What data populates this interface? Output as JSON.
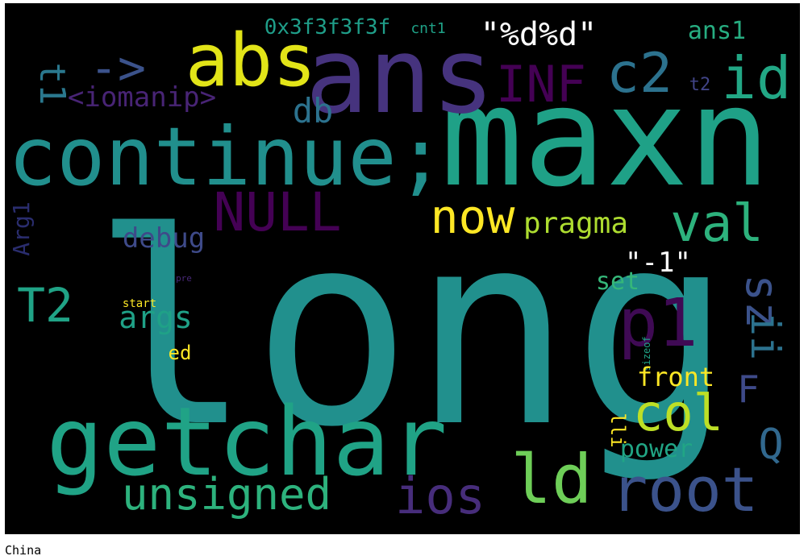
{
  "caption": "China",
  "words": [
    {
      "text": "long",
      "color": "#21908d"
    },
    {
      "text": "maxn",
      "color": "#1fa187"
    },
    {
      "text": "continue;",
      "color": "#218f8d"
    },
    {
      "text": "getchar",
      "color": "#20a386"
    },
    {
      "text": "abs",
      "color": "#e2e418"
    },
    {
      "text": "ans",
      "color": "#46337e"
    },
    {
      "text": "->",
      "color": "#3b528b"
    },
    {
      "text": "INF",
      "color": "#440154"
    },
    {
      "text": "c2",
      "color": "#2c728e"
    },
    {
      "text": "id",
      "color": "#22a785"
    },
    {
      "text": "\"%d%d\"",
      "color": "#ffffff"
    },
    {
      "text": "0x3f3f3f3f",
      "color": "#1f9e89"
    },
    {
      "text": "cnt1",
      "color": "#1fa187"
    },
    {
      "text": "ans1",
      "color": "#27ad81"
    },
    {
      "text": "t1",
      "color": "#2a788e"
    },
    {
      "text": "<iomanip>",
      "color": "#482475"
    },
    {
      "text": "db",
      "color": "#2c728e"
    },
    {
      "text": "t2",
      "color": "#414487"
    },
    {
      "text": "NULL",
      "color": "#440154"
    },
    {
      "text": "now",
      "color": "#fde725"
    },
    {
      "text": "pragma",
      "color": "#addc30"
    },
    {
      "text": "val",
      "color": "#2db27d"
    },
    {
      "text": "debug",
      "color": "#3e4a89"
    },
    {
      "text": "Arg1",
      "color": "#2a2d6e"
    },
    {
      "text": "\"-1\"",
      "color": "#ffffff"
    },
    {
      "text": "sz",
      "color": "#3b528b"
    },
    {
      "text": "T2",
      "color": "#20a386"
    },
    {
      "text": "args",
      "color": "#1fa187"
    },
    {
      "text": "pre",
      "color": "#482878"
    },
    {
      "text": "start",
      "color": "#fde725"
    },
    {
      "text": "set",
      "color": "#35b779"
    },
    {
      "text": "p1",
      "color": "#3f0a54"
    },
    {
      "text": "ii",
      "color": "#2c728e"
    },
    {
      "text": "ed",
      "color": "#fde725"
    },
    {
      "text": "sizeof",
      "color": "#20a386"
    },
    {
      "text": "front",
      "color": "#fde725"
    },
    {
      "text": "F",
      "color": "#3e4a89"
    },
    {
      "text": "col",
      "color": "#bddf26"
    },
    {
      "text": "lli",
      "color": "#fde725"
    },
    {
      "text": "power",
      "color": "#21a585"
    },
    {
      "text": "Q",
      "color": "#31688e"
    },
    {
      "text": "unsigned",
      "color": "#2db27d"
    },
    {
      "text": "ios",
      "color": "#472d7b"
    },
    {
      "text": "ld",
      "color": "#6ece58"
    },
    {
      "text": "root",
      "color": "#3b528b"
    }
  ]
}
